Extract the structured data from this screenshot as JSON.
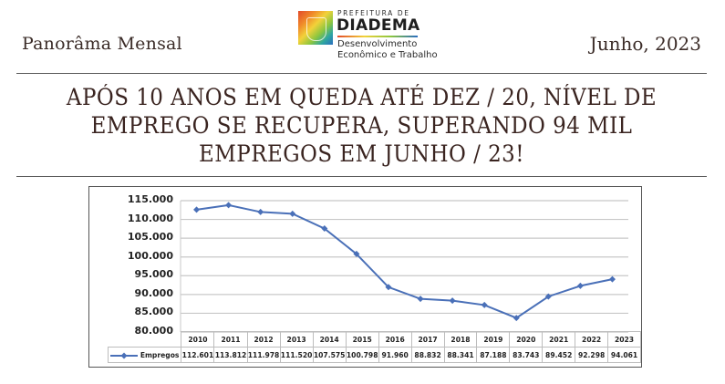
{
  "header": {
    "left_title": "Panorâma Mensal",
    "right_date": "Junho, 2023",
    "logo": {
      "pre": "PREFEITURA DE",
      "name": "DIADEMA",
      "sub1": "Desenvolvimento",
      "sub2": "Econômico e Trabalho",
      "icon": "city-crest-icon"
    }
  },
  "headline": {
    "line1": "APÓS 10 ANOS EM QUEDA ATÉ DEZ / 20, NÍVEL DE",
    "line2": "EMPREGO SE RECUPERA, SUPERANDO 94 MIL",
    "line3": "EMPREGOS EM JUNHO / 23!"
  },
  "colors": {
    "series": "#4a70b8",
    "grid": "#c8c8c8",
    "text": "#3a2420"
  },
  "chart_data": {
    "type": "line",
    "title": "",
    "xlabel": "",
    "ylabel": "",
    "categories": [
      "2010",
      "2011",
      "2012",
      "2013",
      "2014",
      "2015",
      "2016",
      "2017",
      "2018",
      "2019",
      "2020",
      "2021",
      "2022",
      "2023"
    ],
    "series": [
      {
        "name": "Empregos",
        "values": [
          112601,
          113812,
          111978,
          111520,
          107575,
          100798,
          91960,
          88832,
          88341,
          87188,
          83743,
          89452,
          92298,
          94061
        ],
        "labels": [
          "112.601",
          "113.812",
          "111.978",
          "111.520",
          "107.575",
          "100.798",
          "91.960",
          "88.832",
          "88.341",
          "87.188",
          "83.743",
          "89.452",
          "92.298",
          "94.061"
        ]
      }
    ],
    "ylim": [
      80000,
      115000
    ],
    "yticks": [
      "115.000",
      "110.000",
      "105.000",
      "100.000",
      "95.000",
      "90.000",
      "85.000",
      "80.000"
    ],
    "grid": true,
    "legend_position": "data-table",
    "data_table": true
  }
}
